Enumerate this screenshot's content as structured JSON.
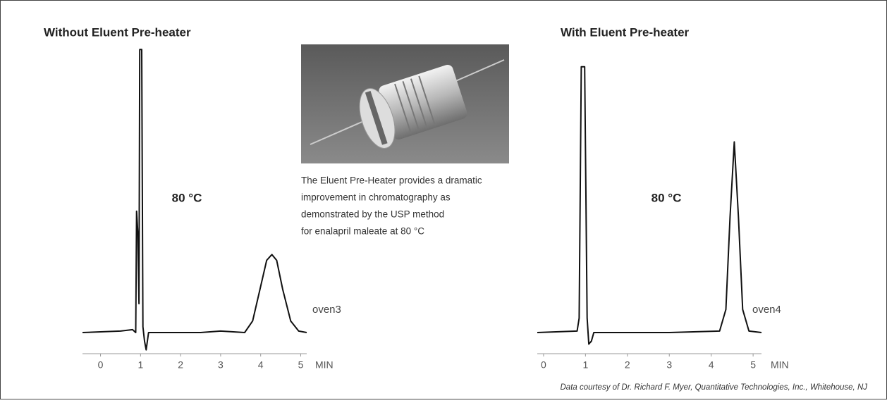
{
  "chart_data": [
    {
      "type": "line",
      "title": "Without Eluent Pre-heater",
      "annotation": "80 °C",
      "trace_label": "oven3",
      "x_label": "MIN",
      "x": [
        -0.45,
        0.5,
        0.8,
        0.88,
        0.9,
        0.93,
        0.96,
        0.98,
        1.03,
        1.06,
        1.1,
        1.14,
        1.2,
        2.5,
        3.0,
        3.6,
        3.8,
        4.0,
        4.15,
        4.28,
        4.4,
        4.55,
        4.75,
        4.95,
        5.15
      ],
      "values": [
        0,
        0.5,
        1,
        0,
        42,
        35,
        10,
        98,
        98,
        2,
        -3,
        -6,
        0,
        0,
        0.5,
        0,
        4,
        16,
        25,
        27,
        25,
        15,
        4,
        0.5,
        0
      ],
      "color": "#111",
      "xlim": [
        -0.45,
        5.15
      ],
      "xticks": [
        0,
        1,
        2,
        3,
        4,
        5
      ],
      "ylim": [
        0,
        100
      ]
    },
    {
      "type": "line",
      "title": "With Eluent Pre-heater",
      "annotation": "80 °C",
      "trace_label": "oven4",
      "x_label": "MIN",
      "x": [
        -0.15,
        0.8,
        0.85,
        0.9,
        0.98,
        1.04,
        1.08,
        1.14,
        1.2,
        3.0,
        4.2,
        4.35,
        4.45,
        4.55,
        4.65,
        4.75,
        4.9,
        5.2
      ],
      "values": [
        0,
        0.5,
        5,
        92,
        92,
        5,
        -4,
        -3,
        0,
        0,
        0.5,
        8,
        40,
        66,
        40,
        8,
        0.5,
        0
      ],
      "color": "#111",
      "xlim": [
        -0.15,
        5.2
      ],
      "xticks": [
        0,
        1,
        2,
        3,
        4,
        5
      ],
      "ylim": [
        0,
        100
      ]
    }
  ],
  "caption": [
    "The Eluent Pre-Heater provides a dramatic",
    "improvement in chromatography as",
    "demonstrated by the USP method",
    "for enalapril maleate at 80 °C"
  ],
  "credit": "Data courtesy of Dr. Richard F. Myer, Quantitative Technologies, Inc., Whitehouse, NJ"
}
